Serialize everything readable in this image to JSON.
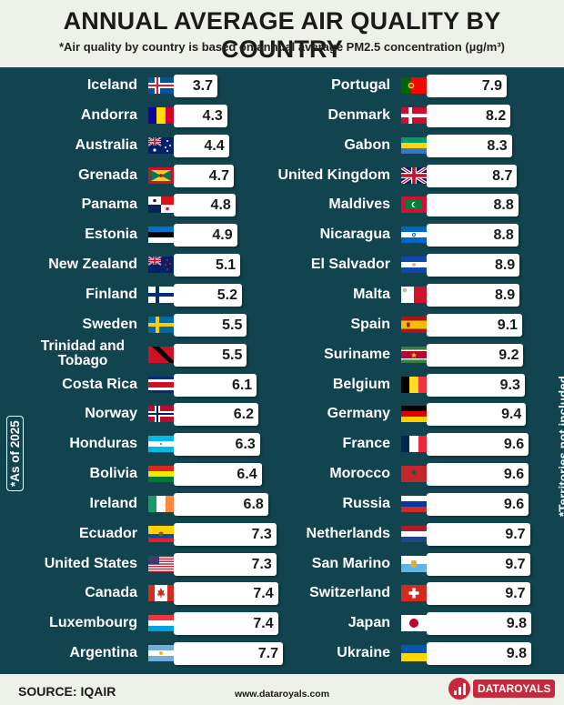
{
  "header": {
    "title": "ANNUAL AVERAGE AIR QUALITY BY COUNTRY",
    "subtitle": "*Air quality by country is based on annual average PM2.5 concentration (µg/m³)"
  },
  "side_notes": {
    "left": "*As of 2025",
    "right": "*Territories not included."
  },
  "footer": {
    "source": "SOURCE: IQAIR",
    "url": "www.dataroyals.com",
    "brand": "DATAROYALS"
  },
  "chart_data": {
    "type": "bar",
    "orientation": "horizontal",
    "columns": [
      {
        "countries": [
          {
            "name": "Iceland",
            "value": 3.7,
            "flag": "iceland-flag-icon"
          },
          {
            "name": "Andorra",
            "value": 4.3,
            "flag": "andorra-flag-icon"
          },
          {
            "name": "Australia",
            "value": 4.4,
            "flag": "australia-flag-icon"
          },
          {
            "name": "Grenada",
            "value": 4.7,
            "flag": "grenada-flag-icon"
          },
          {
            "name": "Panama",
            "value": 4.8,
            "flag": "panama-flag-icon"
          },
          {
            "name": "Estonia",
            "value": 4.9,
            "flag": "estonia-flag-icon"
          },
          {
            "name": "New Zealand",
            "value": 5.1,
            "flag": "new-zealand-flag-icon"
          },
          {
            "name": "Finland",
            "value": 5.2,
            "flag": "finland-flag-icon"
          },
          {
            "name": "Sweden",
            "value": 5.5,
            "flag": "sweden-flag-icon"
          },
          {
            "name": "Trinidad and Tobago",
            "value": 5.5,
            "flag": "trinidad-and-tobago-flag-icon"
          },
          {
            "name": "Costa Rica",
            "value": 6.1,
            "flag": "costa-rica-flag-icon"
          },
          {
            "name": "Norway",
            "value": 6.2,
            "flag": "norway-flag-icon"
          },
          {
            "name": "Honduras",
            "value": 6.3,
            "flag": "honduras-flag-icon"
          },
          {
            "name": "Bolivia",
            "value": 6.4,
            "flag": "bolivia-flag-icon"
          },
          {
            "name": "Ireland",
            "value": 6.8,
            "flag": "ireland-flag-icon"
          },
          {
            "name": "Ecuador",
            "value": 7.3,
            "flag": "ecuador-flag-icon"
          },
          {
            "name": "United States",
            "value": 7.3,
            "flag": "united-states-flag-icon"
          },
          {
            "name": "Canada",
            "value": 7.4,
            "flag": "canada-flag-icon"
          },
          {
            "name": "Luxembourg",
            "value": 7.4,
            "flag": "luxembourg-flag-icon"
          },
          {
            "name": "Argentina",
            "value": 7.7,
            "flag": "argentina-flag-icon"
          }
        ]
      },
      {
        "countries": [
          {
            "name": "Portugal",
            "value": 7.9,
            "flag": "portugal-flag-icon"
          },
          {
            "name": "Denmark",
            "value": 8.2,
            "flag": "denmark-flag-icon"
          },
          {
            "name": "Gabon",
            "value": 8.3,
            "flag": "gabon-flag-icon"
          },
          {
            "name": "United Kingdom",
            "value": 8.7,
            "flag": "united-kingdom-flag-icon"
          },
          {
            "name": "Maldives",
            "value": 8.8,
            "flag": "maldives-flag-icon"
          },
          {
            "name": "Nicaragua",
            "value": 8.8,
            "flag": "nicaragua-flag-icon"
          },
          {
            "name": "El Salvador",
            "value": 8.9,
            "flag": "el-salvador-flag-icon"
          },
          {
            "name": "Malta",
            "value": 8.9,
            "flag": "malta-flag-icon"
          },
          {
            "name": "Spain",
            "value": 9.1,
            "flag": "spain-flag-icon"
          },
          {
            "name": "Suriname",
            "value": 9.2,
            "flag": "suriname-flag-icon"
          },
          {
            "name": "Belgium",
            "value": 9.3,
            "flag": "belgium-flag-icon"
          },
          {
            "name": "Germany",
            "value": 9.4,
            "flag": "germany-flag-icon"
          },
          {
            "name": "France",
            "value": 9.6,
            "flag": "france-flag-icon"
          },
          {
            "name": "Morocco",
            "value": 9.6,
            "flag": "morocco-flag-icon"
          },
          {
            "name": "Russia",
            "value": 9.6,
            "flag": "russia-flag-icon"
          },
          {
            "name": "Netherlands",
            "value": 9.7,
            "flag": "netherlands-flag-icon"
          },
          {
            "name": "San Marino",
            "value": 9.7,
            "flag": "san-marino-flag-icon"
          },
          {
            "name": "Switzerland",
            "value": 9.7,
            "flag": "switzerland-flag-icon"
          },
          {
            "name": "Japan",
            "value": 9.8,
            "flag": "japan-flag-icon"
          },
          {
            "name": "Ukraine",
            "value": 9.8,
            "flag": "ukraine-flag-icon"
          }
        ]
      }
    ],
    "colors": {
      "panel": "#11444f",
      "bar": "#ffffff",
      "page": "#eef0ea",
      "brand": "#c8283a"
    }
  }
}
